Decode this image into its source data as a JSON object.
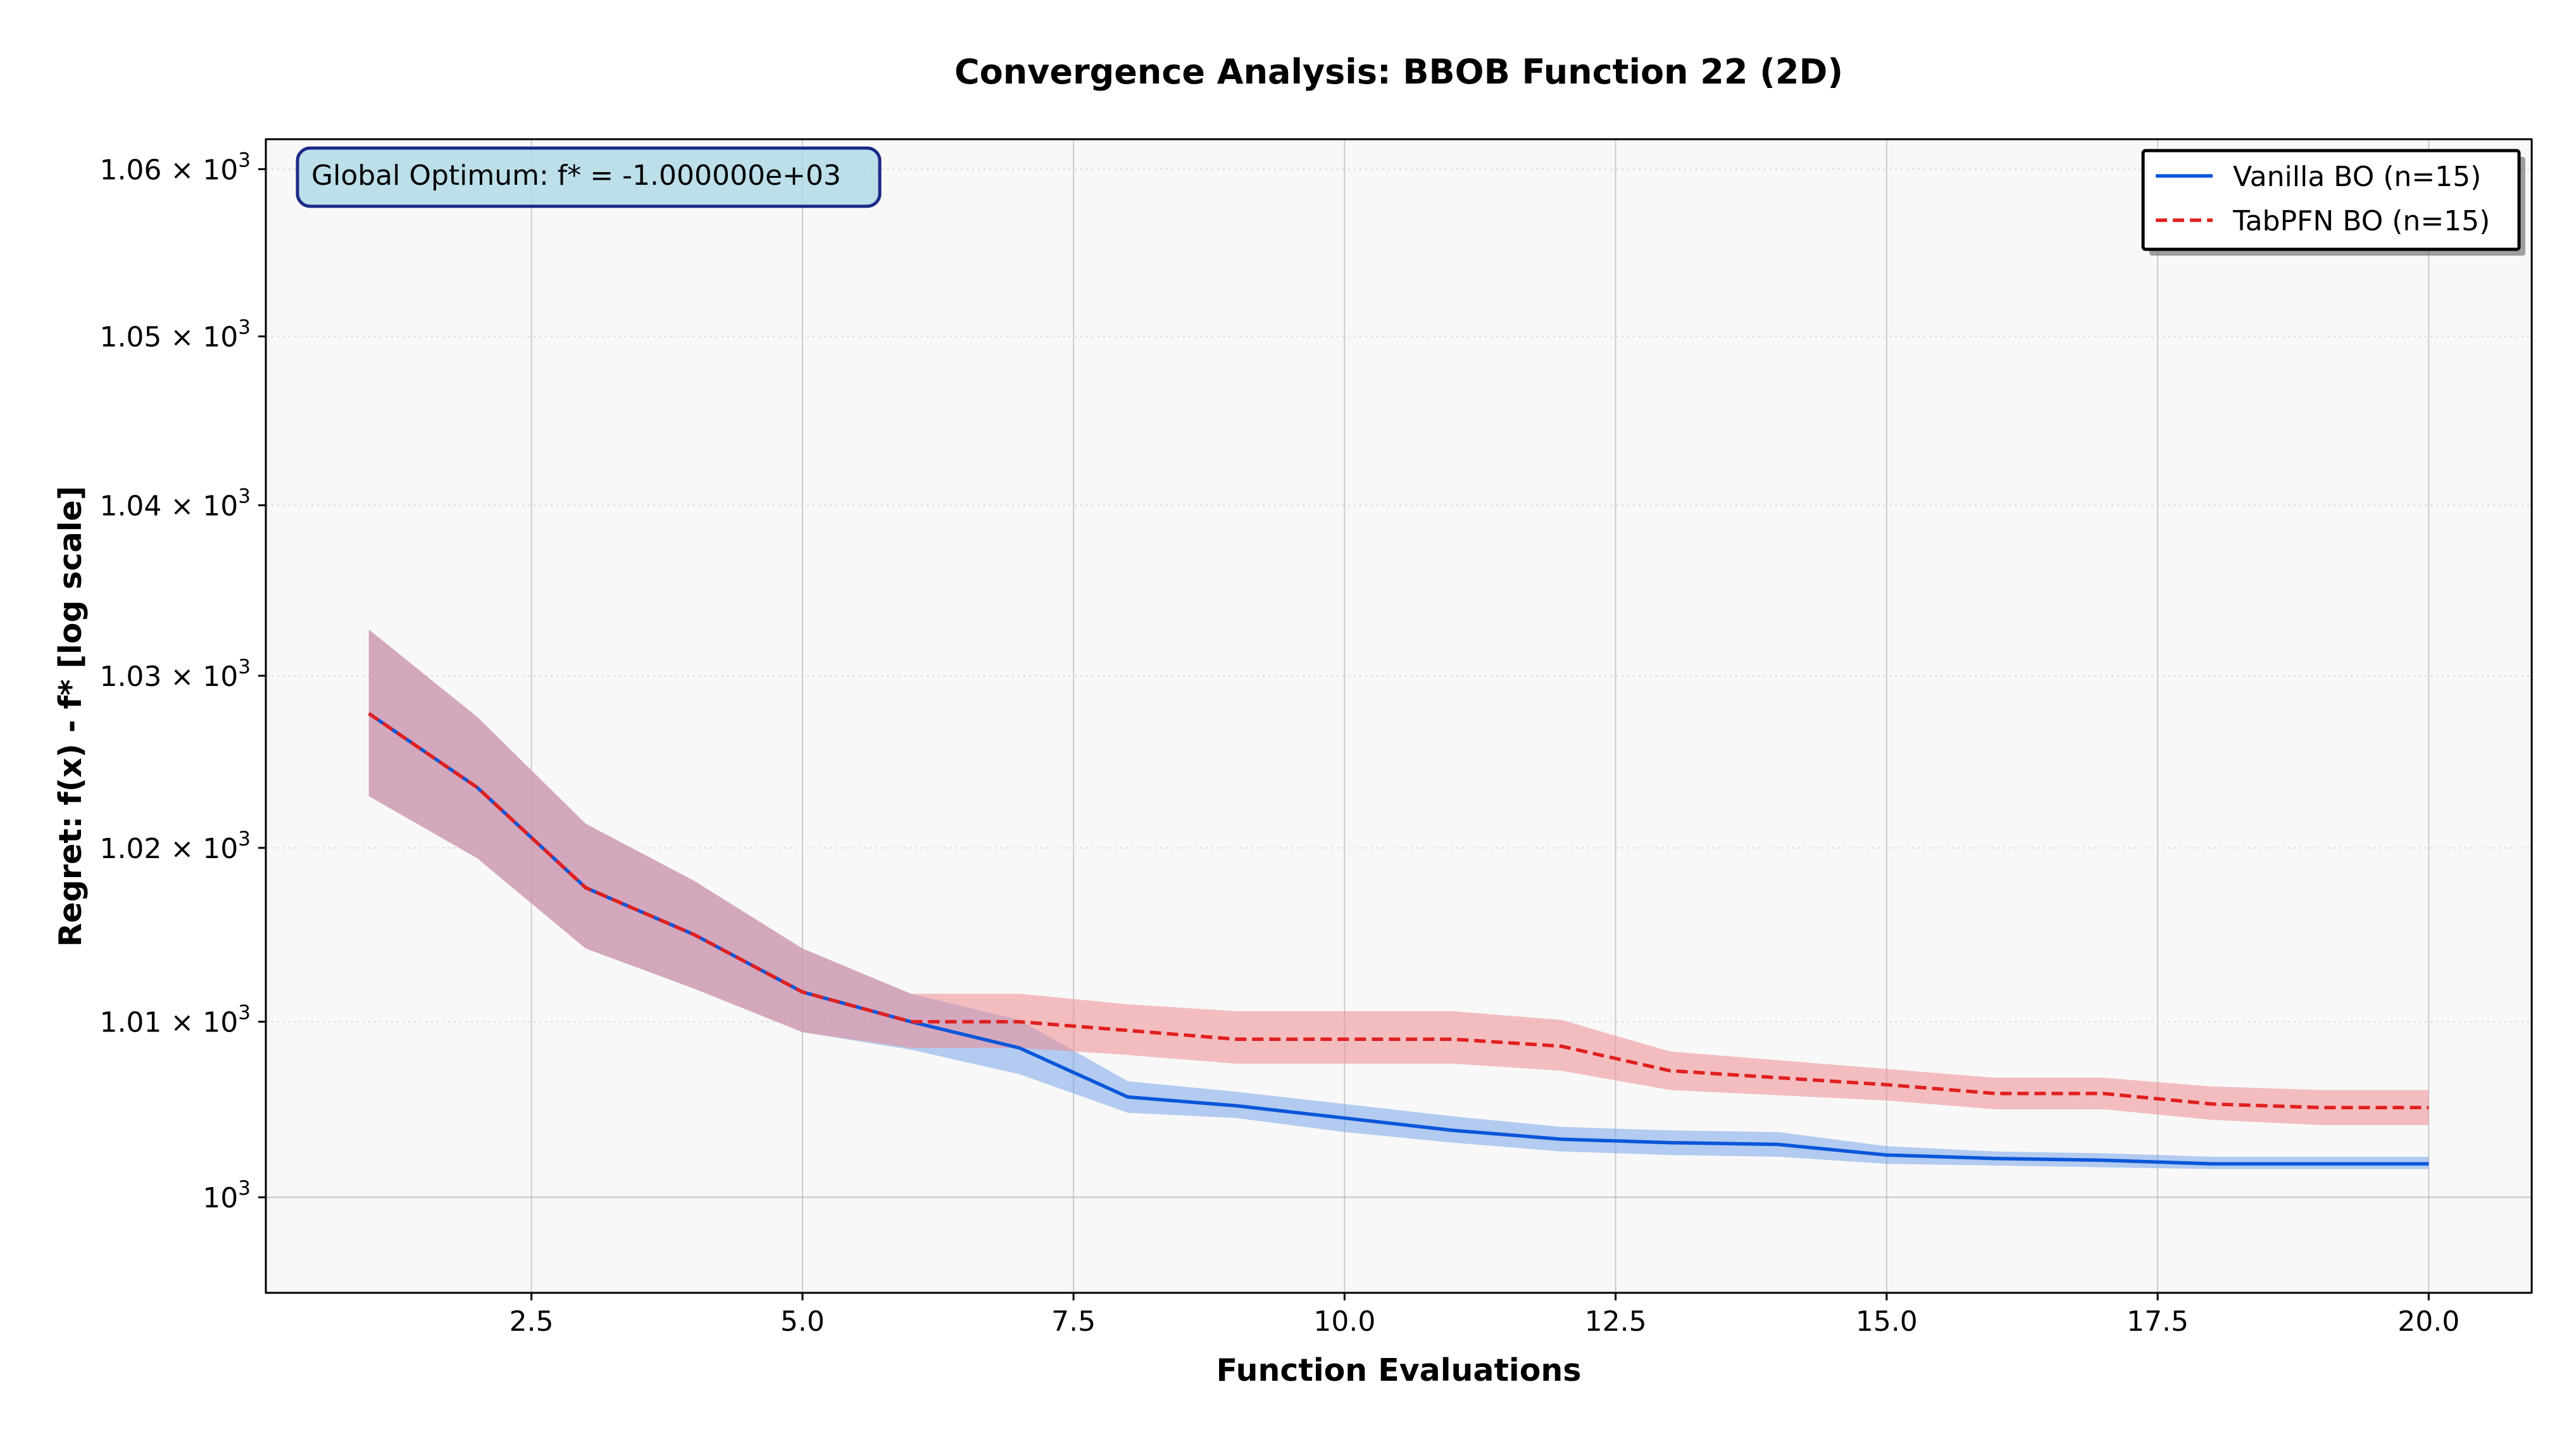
{
  "chart_data": {
    "type": "line",
    "title": "Convergence Analysis: BBOB Function 22 (2D)",
    "xlabel": "Function Evaluations",
    "ylabel": "Regret: f(x) - f* [log scale]",
    "y_scale": "log",
    "xlim": [
      0.05,
      20.95
    ],
    "ylim": [
      994.6,
      1061.8
    ],
    "x_ticks": [
      2.5,
      5.0,
      7.5,
      10.0,
      12.5,
      15.0,
      17.5,
      20.0
    ],
    "x_tick_labels": [
      "2.5",
      "5.0",
      "7.5",
      "10.0",
      "12.5",
      "15.0",
      "17.5",
      "20.0"
    ],
    "y_ticks": [
      {
        "value": 1000,
        "base": "10",
        "exp": "3",
        "mult": ""
      },
      {
        "value": 1010,
        "base": "10",
        "exp": "3",
        "mult": "1.01 × "
      },
      {
        "value": 1020,
        "base": "10",
        "exp": "3",
        "mult": "1.02 × "
      },
      {
        "value": 1030,
        "base": "10",
        "exp": "3",
        "mult": "1.03 × "
      },
      {
        "value": 1040,
        "base": "10",
        "exp": "3",
        "mult": "1.04 × "
      },
      {
        "value": 1050,
        "base": "10",
        "exp": "3",
        "mult": "1.05 × "
      },
      {
        "value": 1060,
        "base": "10",
        "exp": "3",
        "mult": "1.06 × "
      }
    ],
    "grid": true,
    "legend_position": "top-right",
    "annotation": "Global Optimum: f* = -1.000000e+03",
    "x": [
      1,
      2,
      3,
      4,
      5,
      6,
      7,
      8,
      9,
      10,
      11,
      12,
      13,
      14,
      15,
      16,
      17,
      18,
      19,
      20
    ],
    "series": [
      {
        "name": "Vanilla BO (n=15)",
        "color": "#0a56d9",
        "band_color": "#6e9ee8",
        "line_style": "solid",
        "values": [
          1027.8,
          1023.5,
          1017.7,
          1015.0,
          1011.7,
          1010.0,
          1008.5,
          1005.7,
          1005.2,
          1004.5,
          1003.8,
          1003.3,
          1003.1,
          1003.0,
          1002.4,
          1002.2,
          1002.1,
          1001.9,
          1001.9,
          1001.9
        ],
        "lower": [
          1023.0,
          1019.4,
          1014.2,
          1011.9,
          1009.4,
          1008.4,
          1007.0,
          1004.8,
          1004.5,
          1003.7,
          1003.1,
          1002.6,
          1002.4,
          1002.3,
          1001.9,
          1001.8,
          1001.7,
          1001.6,
          1001.6,
          1001.6
        ],
        "upper": [
          1032.7,
          1027.6,
          1021.4,
          1018.1,
          1014.2,
          1011.6,
          1010.1,
          1006.6,
          1006.0,
          1005.3,
          1004.6,
          1004.0,
          1003.8,
          1003.7,
          1002.9,
          1002.6,
          1002.5,
          1002.3,
          1002.3,
          1002.3
        ]
      },
      {
        "name": "TabPFN BO (n=15)",
        "color": "#e0201f",
        "band_color": "#ee8d91",
        "line_style": "dashed",
        "values": [
          1027.8,
          1023.5,
          1017.7,
          1015.0,
          1011.7,
          1010.0,
          1010.0,
          1009.5,
          1009.0,
          1009.0,
          1009.0,
          1008.6,
          1007.2,
          1006.8,
          1006.4,
          1005.9,
          1005.9,
          1005.3,
          1005.1,
          1005.1
        ],
        "lower": [
          1023.0,
          1019.4,
          1014.2,
          1011.9,
          1009.4,
          1008.5,
          1008.5,
          1008.1,
          1007.6,
          1007.6,
          1007.6,
          1007.2,
          1006.1,
          1005.8,
          1005.5,
          1005.0,
          1005.0,
          1004.4,
          1004.1,
          1004.1
        ],
        "upper": [
          1032.7,
          1027.6,
          1021.4,
          1018.1,
          1014.2,
          1011.6,
          1011.6,
          1011.0,
          1010.6,
          1010.6,
          1010.6,
          1010.1,
          1008.3,
          1007.8,
          1007.3,
          1006.8,
          1006.8,
          1006.3,
          1006.1,
          1006.1
        ]
      }
    ]
  }
}
